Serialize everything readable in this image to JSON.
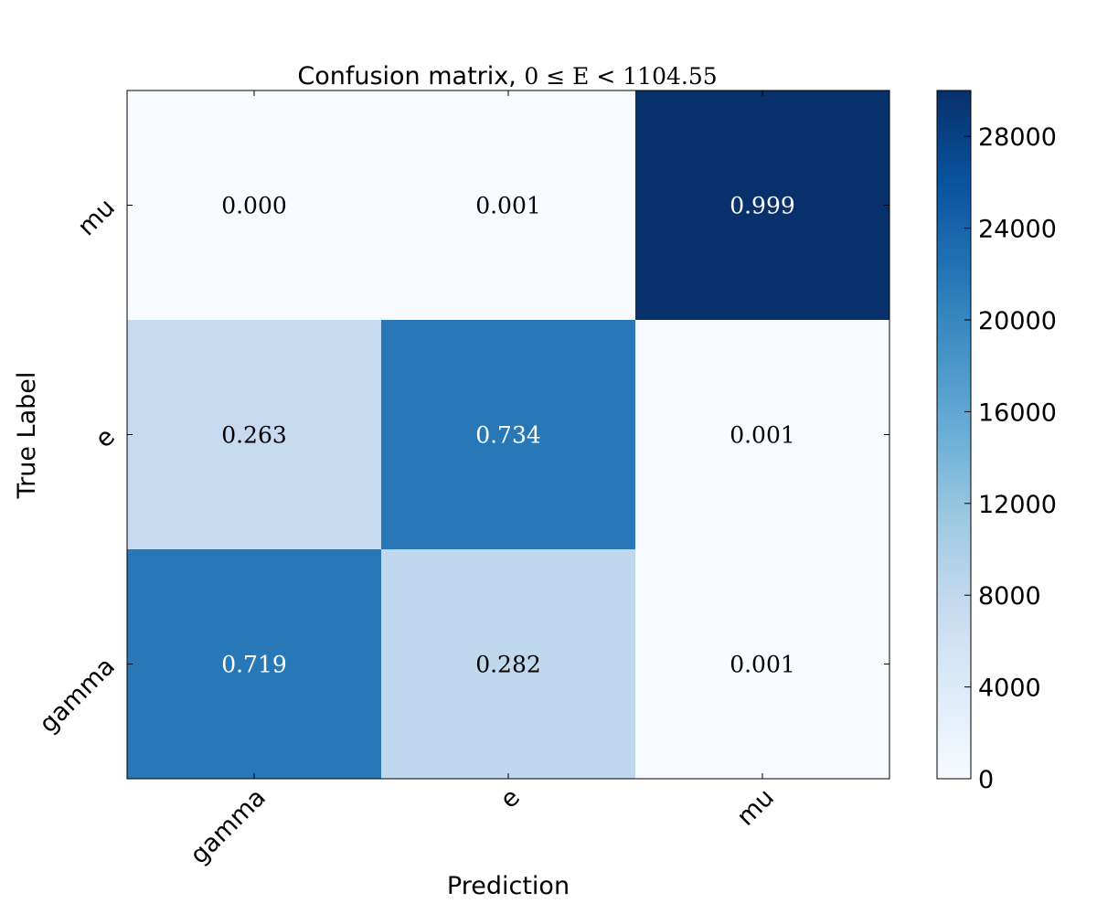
{
  "chart_data": {
    "type": "heatmap",
    "title": "Confusion matrix, ",
    "title_math": "0 ≤ E < 1104.55",
    "xlabel": "Prediction",
    "ylabel": "True Label",
    "x_categories": [
      "gamma",
      "e",
      "mu"
    ],
    "y_categories": [
      "mu",
      "e",
      "gamma"
    ],
    "values": [
      [
        0.0,
        0.001,
        0.999
      ],
      [
        0.263,
        0.734,
        0.001
      ],
      [
        0.719,
        0.282,
        0.001
      ]
    ],
    "value_labels": [
      [
        "0.000",
        "0.001",
        "0.999"
      ],
      [
        "0.263",
        "0.734",
        "0.001"
      ],
      [
        "0.719",
        "0.282",
        "0.001"
      ]
    ],
    "colorbar": {
      "colormap": "Blues",
      "min": 0,
      "max": 30000,
      "ticks": [
        0,
        4000,
        8000,
        12000,
        16000,
        20000,
        24000,
        28000
      ],
      "tick_labels": [
        "0",
        "4000",
        "8000",
        "12000",
        "16000",
        "20000",
        "24000",
        "28000"
      ]
    },
    "cell_colors": [
      [
        "#f7fbff",
        "#f7fbff",
        "#08306b"
      ],
      [
        "#c6dbef",
        "#2878b8",
        "#f7fbff"
      ],
      [
        "#2878b8",
        "#c0d8ed",
        "#f7fbff"
      ]
    ],
    "text_colors": [
      [
        "#000000",
        "#000000",
        "#ffffff"
      ],
      [
        "#000000",
        "#ffffff",
        "#000000"
      ],
      [
        "#ffffff",
        "#000000",
        "#000000"
      ]
    ],
    "colormap_stops": [
      "#f7fbff",
      "#deebf7",
      "#c6dbef",
      "#9ecae1",
      "#6baed6",
      "#4292c6",
      "#2171b5",
      "#08519c",
      "#08306b"
    ]
  }
}
